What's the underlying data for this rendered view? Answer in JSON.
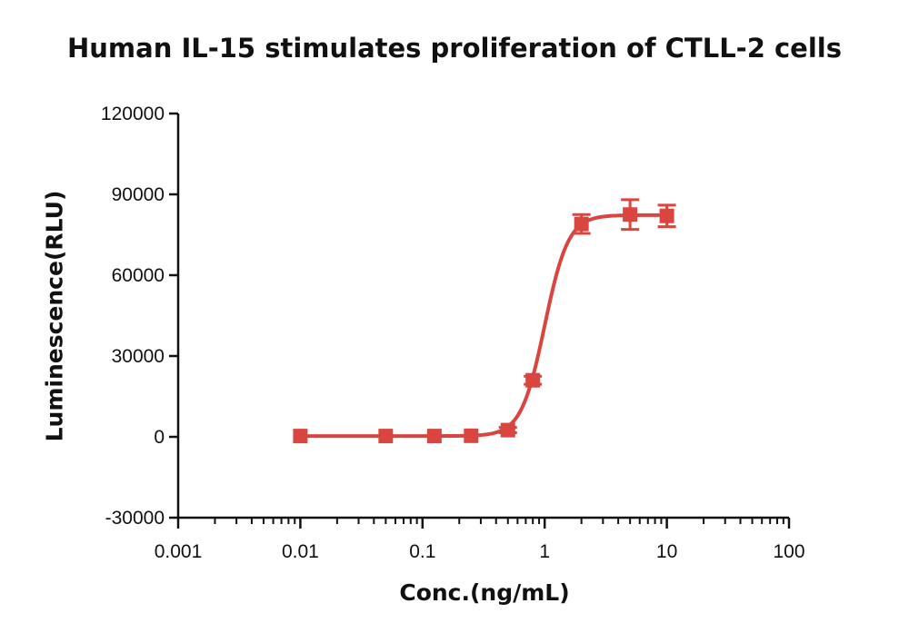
{
  "chart_data": {
    "type": "scatter",
    "title": "Human IL-15 stimulates proliferation of CTLL-2 cells",
    "xlabel": "Conc.(ng/mL)",
    "ylabel": "Luminescence(RLU)",
    "x_scale": "log",
    "xlim": [
      0.001,
      100
    ],
    "ylim": [
      -30000,
      120000
    ],
    "x_ticks": [
      "0.001",
      "0.01",
      "0.1",
      "1",
      "10",
      "100"
    ],
    "y_ticks": [
      "-30000",
      "0",
      "30000",
      "60000",
      "90000",
      "120000"
    ],
    "grid": false,
    "legend": "none",
    "color": "#d9453f",
    "series": [
      {
        "x": [
          0.01,
          0.05,
          0.125,
          0.25,
          0.5,
          0.8,
          2,
          5,
          10
        ],
        "y": [
          300,
          300,
          300,
          400,
          2500,
          21000,
          79000,
          82500,
          82000
        ],
        "error": [
          0,
          0,
          0,
          0,
          1000,
          1500,
          3500,
          5500,
          4000
        ]
      }
    ],
    "fit": {
      "bottom": 300,
      "top": 82300,
      "ec50": 1.0,
      "hill": 4.5
    }
  }
}
